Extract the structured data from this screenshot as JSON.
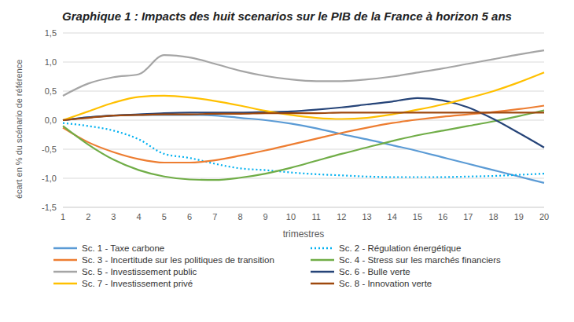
{
  "chart_data": {
    "type": "line",
    "title": "Graphique 1 : Impacts des huit scenarios sur le PIB de la France à horizon 5 ans",
    "x_label": "trimestres",
    "y_label": "écart en % du scénario de référence",
    "categories": [
      "1",
      "2",
      "3",
      "4",
      "5",
      "6",
      "7",
      "8",
      "9",
      "10",
      "11",
      "12",
      "13",
      "14",
      "15",
      "16",
      "17",
      "18",
      "19",
      "20"
    ],
    "ylim": [
      -1.5,
      1.5
    ],
    "yticks": [
      {
        "value": -1.5,
        "label": "-1,5"
      },
      {
        "value": -1,
        "label": "-1,0"
      },
      {
        "value": -0.5,
        "label": "-0,5"
      },
      {
        "value": 0,
        "label": "0,0"
      },
      {
        "value": 0.5,
        "label": "0,5"
      },
      {
        "value": 1,
        "label": "1,0"
      },
      {
        "value": 1.5,
        "label": "1,5"
      }
    ],
    "grid": true,
    "legend": "bottom",
    "series": [
      {
        "name": "Sc. 1 - Taxe carbone",
        "color": "#5B9BD5",
        "line_style": "solid",
        "values": [
          0.0,
          0.05,
          0.08,
          0.09,
          0.09,
          0.09,
          0.08,
          0.04,
          0.0,
          -0.06,
          -0.14,
          -0.24,
          -0.33,
          -0.43,
          -0.53,
          -0.64,
          -0.75,
          -0.86,
          -0.97,
          -1.08
        ]
      },
      {
        "name": "Sc. 2 - Régulation énergétique",
        "color": "#00B0F0",
        "line_style": "dotted",
        "values": [
          -0.05,
          -0.1,
          -0.18,
          -0.33,
          -0.58,
          -0.65,
          -0.75,
          -0.83,
          -0.86,
          -0.9,
          -0.93,
          -0.95,
          -0.97,
          -0.98,
          -0.98,
          -0.98,
          -0.97,
          -0.96,
          -0.94,
          -0.92
        ]
      },
      {
        "name": "Sc. 3 - Incertitude sur les politiques de transition",
        "color": "#ED7D31",
        "line_style": "solid",
        "values": [
          -0.13,
          -0.38,
          -0.55,
          -0.67,
          -0.73,
          -0.73,
          -0.69,
          -0.61,
          -0.52,
          -0.42,
          -0.32,
          -0.22,
          -0.13,
          -0.05,
          0.01,
          0.06,
          0.1,
          0.14,
          0.19,
          0.25
        ]
      },
      {
        "name": "Sc. 4 - Stress sur les marchés financiers",
        "color": "#70AD47",
        "line_style": "solid",
        "values": [
          -0.1,
          -0.42,
          -0.68,
          -0.86,
          -0.97,
          -1.02,
          -1.03,
          -0.99,
          -0.92,
          -0.82,
          -0.7,
          -0.58,
          -0.47,
          -0.36,
          -0.26,
          -0.18,
          -0.1,
          -0.02,
          0.07,
          0.17
        ]
      },
      {
        "name": "Sc. 5 - Investissement public",
        "color": "#A5A5A5",
        "line_style": "solid",
        "values": [
          0.42,
          0.63,
          0.74,
          0.79,
          1.12,
          1.08,
          0.97,
          0.85,
          0.76,
          0.7,
          0.67,
          0.67,
          0.7,
          0.75,
          0.82,
          0.89,
          0.97,
          1.05,
          1.13,
          1.2
        ]
      },
      {
        "name": "Sc. 6 - Bulle verte",
        "color": "#264478",
        "line_style": "solid",
        "values": [
          0.0,
          0.05,
          0.08,
          0.1,
          0.12,
          0.13,
          0.13,
          0.13,
          0.14,
          0.15,
          0.18,
          0.22,
          0.27,
          0.32,
          0.38,
          0.34,
          0.22,
          0.02,
          -0.22,
          -0.47
        ]
      },
      {
        "name": "Sc. 7 - Investissement privé",
        "color": "#FFC000",
        "line_style": "solid",
        "values": [
          0.0,
          0.15,
          0.3,
          0.4,
          0.42,
          0.39,
          0.33,
          0.25,
          0.16,
          0.09,
          0.04,
          0.02,
          0.04,
          0.1,
          0.18,
          0.27,
          0.38,
          0.5,
          0.65,
          0.82
        ]
      },
      {
        "name": "Sc. 8 - Innovation verte",
        "color": "#9E480E",
        "line_style": "solid",
        "values": [
          0.0,
          0.04,
          0.08,
          0.09,
          0.1,
          0.1,
          0.11,
          0.11,
          0.12,
          0.12,
          0.12,
          0.13,
          0.13,
          0.13,
          0.13,
          0.13,
          0.13,
          0.13,
          0.13,
          0.13
        ]
      }
    ]
  }
}
